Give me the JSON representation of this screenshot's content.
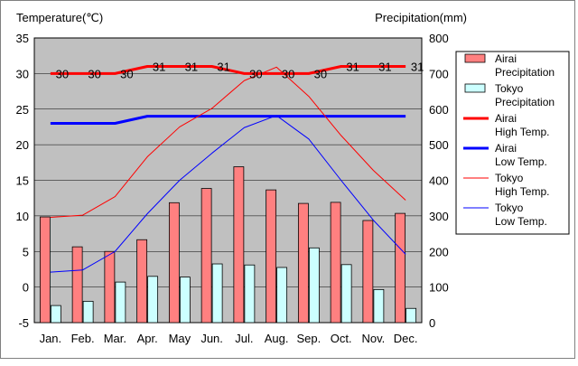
{
  "chart_data": {
    "type": "bar+line",
    "categories": [
      "Jan.",
      "Feb.",
      "Mar.",
      "Apr.",
      "May",
      "Jun.",
      "Jul.",
      "Aug.",
      "Sep.",
      "Oct.",
      "Nov.",
      "Dec."
    ],
    "left_axis": {
      "label": "Temperature(℃)",
      "range": [
        -5,
        35
      ],
      "ticks": [
        -5,
        0,
        5,
        10,
        15,
        20,
        25,
        30,
        35
      ]
    },
    "right_axis": {
      "label": "Precipitation(mm)",
      "range": [
        0,
        800
      ],
      "ticks": [
        0,
        100,
        200,
        300,
        400,
        500,
        600,
        700,
        800
      ]
    },
    "grid": true,
    "legend_position": "right",
    "series": [
      {
        "name": "Airai Precipitation",
        "legend": [
          "Airai",
          "Precipitation"
        ],
        "kind": "bar",
        "axis": "right",
        "color": "#ff8080",
        "values": [
          297,
          213,
          200,
          233,
          337,
          377,
          438,
          373,
          335,
          338,
          287,
          307
        ]
      },
      {
        "name": "Tokyo Precipitation",
        "legend": [
          "Tokyo",
          "Precipitation"
        ],
        "kind": "bar",
        "axis": "right",
        "color": "#ccffff",
        "values": [
          48,
          60,
          114,
          130,
          128,
          165,
          162,
          155,
          210,
          163,
          93,
          40
        ]
      },
      {
        "name": "Airai High Temp.",
        "legend": [
          "Airai",
          "High Temp."
        ],
        "kind": "line",
        "axis": "left",
        "color": "#ff0000",
        "width": 3,
        "values": [
          30,
          30,
          30,
          31,
          31,
          31,
          30,
          30,
          30,
          31,
          31,
          31
        ]
      },
      {
        "name": "Airai Low Temp.",
        "legend": [
          "Airai",
          "Low Temp."
        ],
        "kind": "line",
        "axis": "left",
        "color": "#0000ff",
        "width": 3,
        "values": [
          23,
          23,
          23,
          24,
          24,
          24,
          24,
          24,
          24,
          24,
          24,
          24
        ]
      },
      {
        "name": "Tokyo High Temp.",
        "legend": [
          "Tokyo",
          "High Temp."
        ],
        "kind": "line",
        "axis": "left",
        "color": "#ff0000",
        "width": 1,
        "values": [
          9.8,
          10.1,
          12.7,
          18.3,
          22.5,
          25.1,
          29.0,
          30.9,
          26.8,
          21.3,
          16.4,
          12.2
        ]
      },
      {
        "name": "Tokyo Low Temp.",
        "legend": [
          "Tokyo",
          "Low Temp."
        ],
        "kind": "line",
        "axis": "left",
        "color": "#0000ff",
        "width": 1,
        "values": [
          2.1,
          2.4,
          5.0,
          10.3,
          15.0,
          18.8,
          22.4,
          24.1,
          20.8,
          15.0,
          9.4,
          4.6
        ]
      }
    ],
    "data_labels": {
      "series": "Airai High Temp.",
      "values": [
        "30",
        "30",
        "30",
        "31",
        "31",
        "31",
        "30",
        "30",
        "30",
        "31",
        "31",
        "31"
      ]
    }
  }
}
